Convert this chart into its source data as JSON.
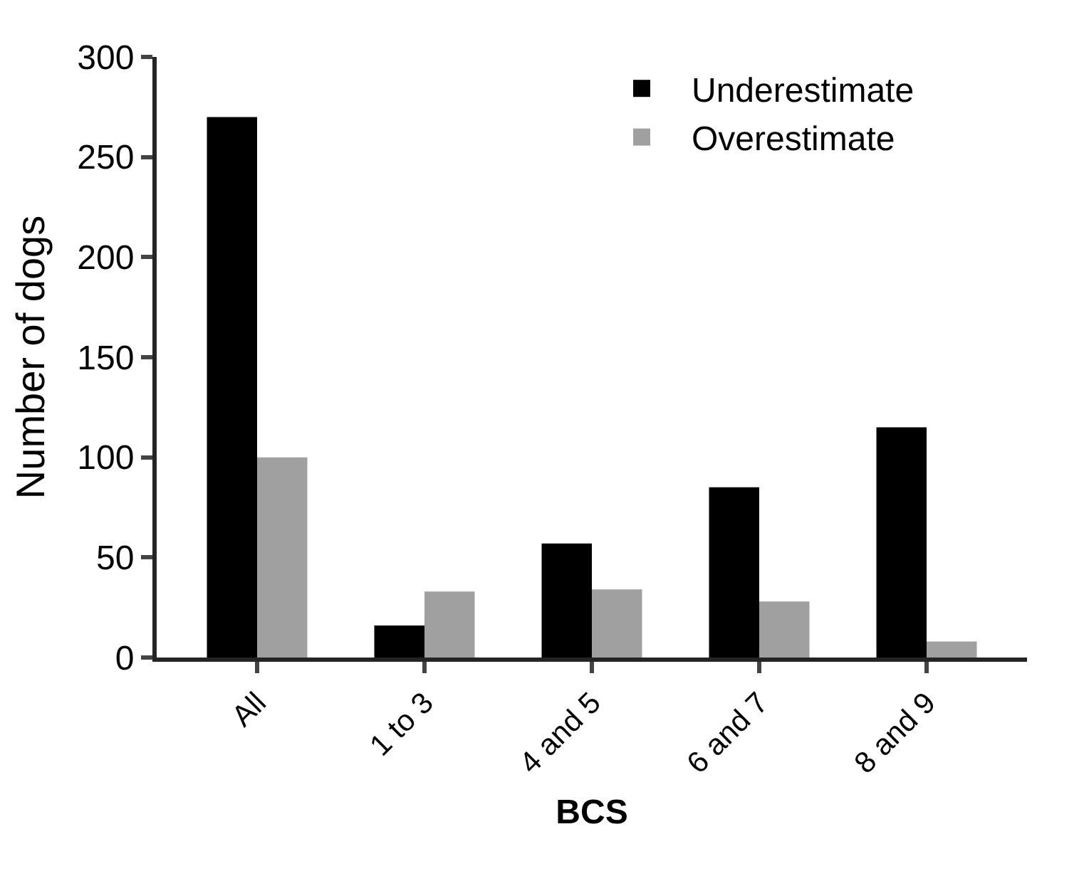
{
  "chart_data": {
    "type": "bar",
    "xlabel": "BCS",
    "ylabel": "Number of dogs",
    "categories": [
      "All",
      "1 to 3",
      "4 and 5",
      "6 and 7",
      "8 and 9"
    ],
    "series": [
      {
        "name": "Underestimate",
        "color": "#000000",
        "values": [
          270,
          16,
          57,
          85,
          115
        ]
      },
      {
        "name": "Overestimate",
        "color": "#a0a0a0",
        "values": [
          100,
          33,
          34,
          28,
          8
        ]
      }
    ],
    "ylim": [
      0,
      300
    ],
    "yticks": [
      0,
      50,
      100,
      150,
      200,
      250,
      300
    ],
    "grid": false,
    "legend": "top right"
  }
}
